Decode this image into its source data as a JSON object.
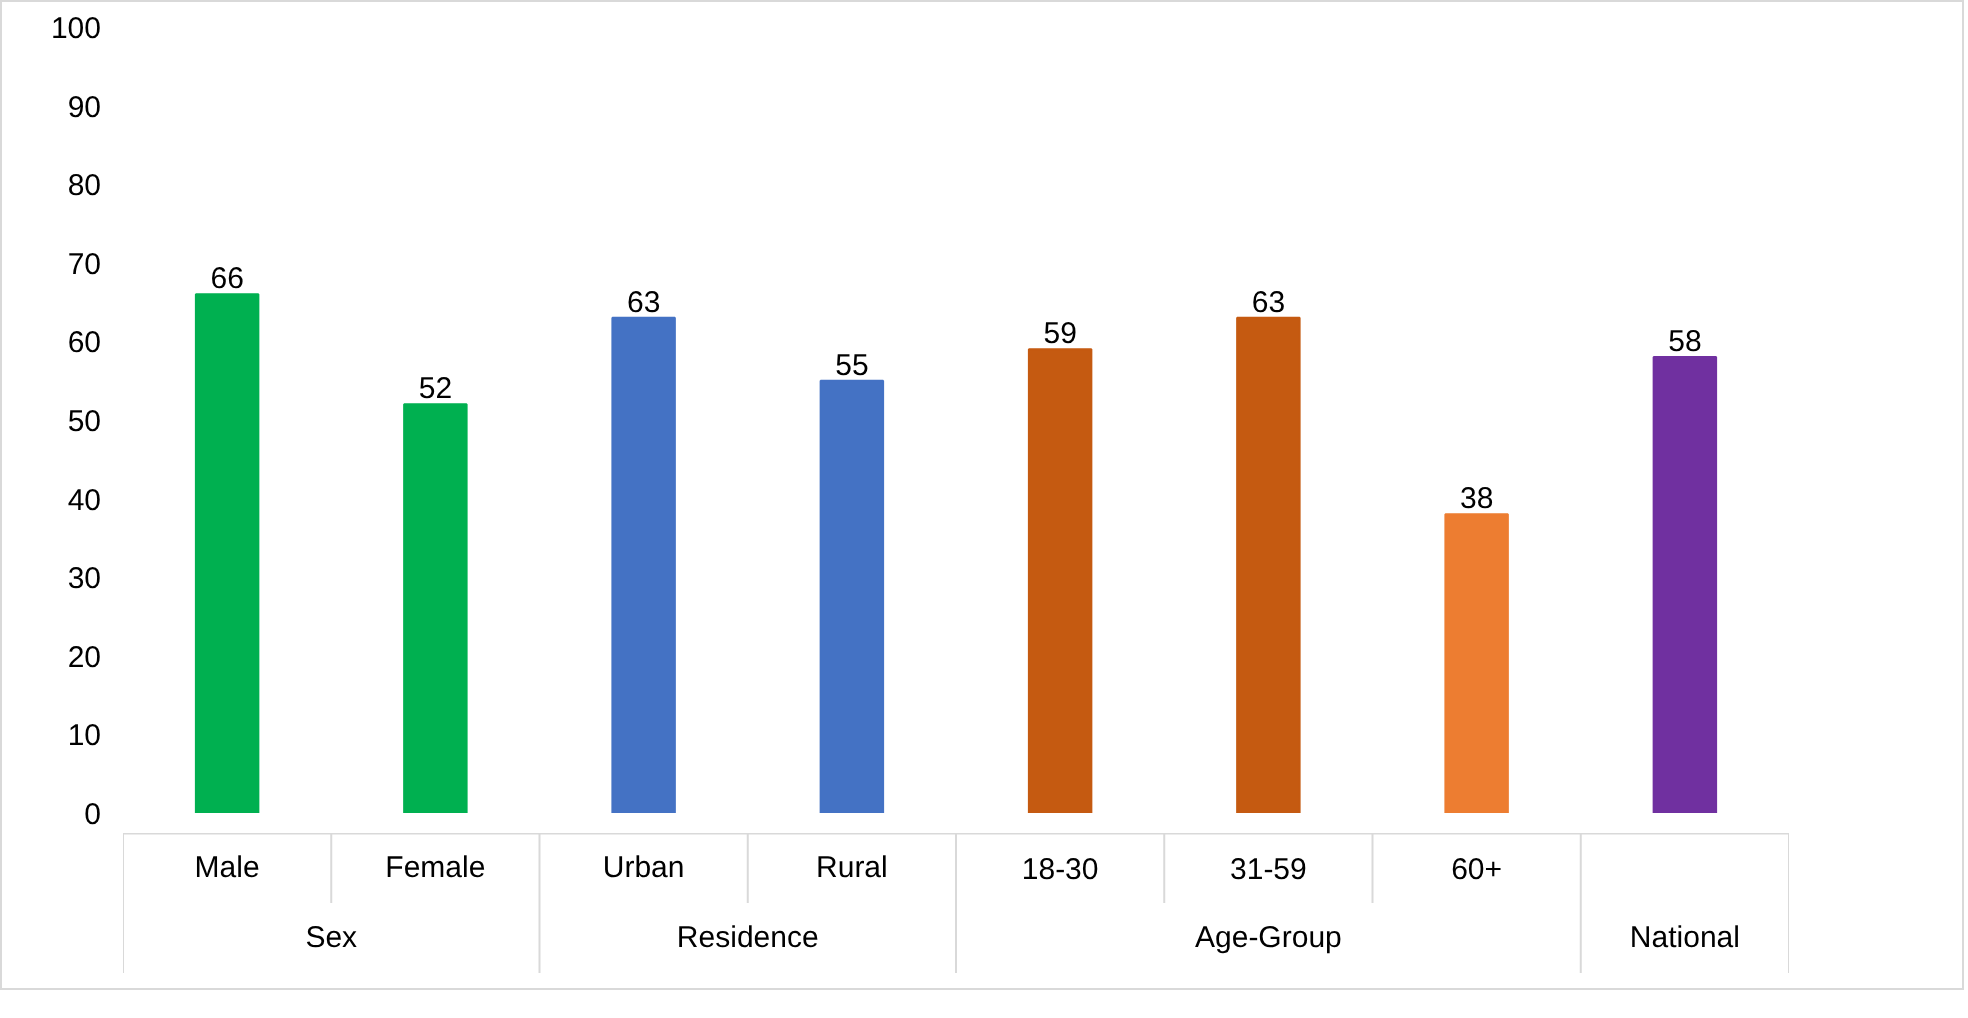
{
  "chart_data": {
    "type": "bar",
    "categories": [
      "Male",
      "Female",
      "Urban",
      "Rural",
      "18-30",
      "31-59",
      "60+",
      null
    ],
    "values": [
      66,
      52,
      63,
      55,
      59,
      63,
      38,
      58
    ],
    "colors": [
      "#00b050",
      "#00b050",
      "#4472c4",
      "#4472c4",
      "#c55a11",
      "#c55a11",
      "#ed7d31",
      "#7030a0"
    ],
    "ylim": [
      0,
      100
    ],
    "yticks": [
      0,
      10,
      20,
      30,
      40,
      50,
      60,
      70,
      80,
      90,
      100
    ],
    "data_labels": true,
    "grid": false,
    "annotations": [
      "Sex",
      "Residence",
      "Age-Group",
      "National"
    ]
  }
}
